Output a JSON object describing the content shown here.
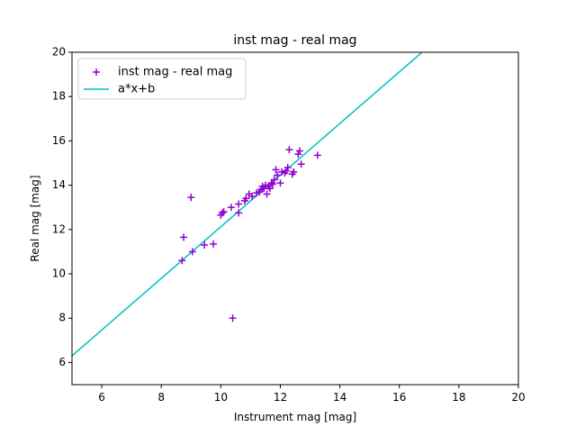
{
  "chart_data": {
    "type": "scatter",
    "title": "inst mag - real mag",
    "xlabel": "Instrument mag [mag]",
    "ylabel": "Real mag [mag]",
    "xlim": [
      5,
      20
    ],
    "ylim": [
      5,
      20
    ],
    "xticks": [
      6,
      8,
      10,
      12,
      14,
      16,
      18,
      20
    ],
    "yticks": [
      6,
      8,
      10,
      12,
      14,
      16,
      18,
      20
    ],
    "grid": false,
    "legend_position": "upper-left",
    "series": [
      {
        "name": "inst mag - real mag",
        "kind": "scatter",
        "marker": "+",
        "color": "#9400d3",
        "points": [
          [
            8.7,
            10.6
          ],
          [
            8.75,
            11.65
          ],
          [
            9.0,
            13.45
          ],
          [
            9.05,
            11.0
          ],
          [
            9.45,
            11.3
          ],
          [
            9.75,
            11.35
          ],
          [
            10.0,
            12.65
          ],
          [
            10.05,
            12.75
          ],
          [
            10.1,
            12.8
          ],
          [
            10.35,
            13.0
          ],
          [
            10.4,
            8.0
          ],
          [
            10.6,
            12.75
          ],
          [
            10.6,
            13.15
          ],
          [
            10.8,
            13.3
          ],
          [
            10.85,
            13.4
          ],
          [
            10.95,
            13.6
          ],
          [
            11.05,
            13.5
          ],
          [
            11.2,
            13.65
          ],
          [
            11.3,
            13.7
          ],
          [
            11.35,
            13.8
          ],
          [
            11.4,
            13.95
          ],
          [
            11.45,
            13.85
          ],
          [
            11.5,
            14.0
          ],
          [
            11.55,
            13.6
          ],
          [
            11.6,
            13.95
          ],
          [
            11.65,
            13.85
          ],
          [
            11.7,
            14.1
          ],
          [
            11.75,
            14.05
          ],
          [
            11.8,
            14.25
          ],
          [
            11.85,
            14.7
          ],
          [
            11.9,
            14.45
          ],
          [
            12.0,
            14.1
          ],
          [
            12.05,
            14.6
          ],
          [
            12.15,
            14.55
          ],
          [
            12.2,
            14.65
          ],
          [
            12.25,
            14.8
          ],
          [
            12.3,
            15.6
          ],
          [
            12.4,
            14.5
          ],
          [
            12.45,
            14.6
          ],
          [
            12.6,
            15.4
          ],
          [
            12.65,
            15.55
          ],
          [
            12.7,
            14.95
          ],
          [
            13.25,
            15.35
          ]
        ]
      },
      {
        "name": "a*x+b",
        "kind": "line",
        "color": "#00bfbf",
        "points": [
          [
            5.0,
            6.3
          ],
          [
            16.76,
            20.0
          ]
        ]
      }
    ]
  }
}
